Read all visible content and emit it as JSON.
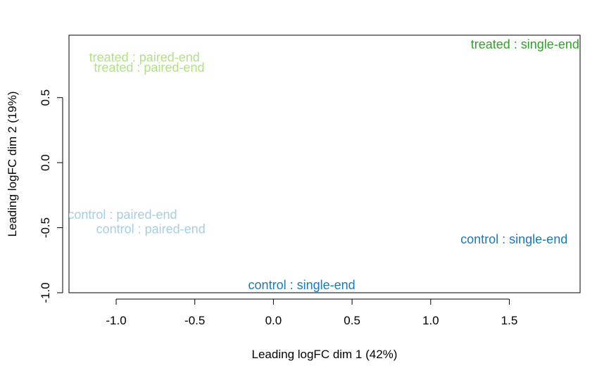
{
  "chart_data": {
    "type": "scatter",
    "xlabel": "Leading logFC dim 1 (42%)",
    "ylabel": "Leading logFC dim 2 (19%)",
    "xlim": [
      -1.3,
      1.95
    ],
    "ylim": [
      -1.0,
      0.98
    ],
    "x_ticks": [
      -1.0,
      -0.5,
      0.0,
      0.5,
      1.0,
      1.5
    ],
    "x_tick_labels": [
      "-1.0",
      "-0.5",
      "0.0",
      "0.5",
      "1.0",
      "1.5"
    ],
    "y_ticks": [
      -1.0,
      -0.5,
      0.0,
      0.5
    ],
    "y_tick_labels": [
      "-1.0",
      "-0.5",
      "0.0",
      "0.5"
    ],
    "grid": false,
    "legend": "none",
    "points": [
      {
        "label": "treated : paired-end",
        "x": -0.82,
        "y": 0.81,
        "color": "#B2DF8A"
      },
      {
        "label": "treated : paired-end",
        "x": -0.79,
        "y": 0.73,
        "color": "#B2DF8A"
      },
      {
        "label": "treated : single-end",
        "x": 1.6,
        "y": 0.91,
        "color": "#33A02C"
      },
      {
        "label": "control : paired-end",
        "x": -0.96,
        "y": -0.4,
        "color": "#A6CEE3"
      },
      {
        "label": "control : paired-end",
        "x": -0.78,
        "y": -0.51,
        "color": "#A6CEE3"
      },
      {
        "label": "control : single-end",
        "x": 1.53,
        "y": -0.59,
        "color": "#1F78B4"
      },
      {
        "label": "control : single-end",
        "x": 0.18,
        "y": -0.94,
        "color": "#1F78B4"
      }
    ]
  }
}
